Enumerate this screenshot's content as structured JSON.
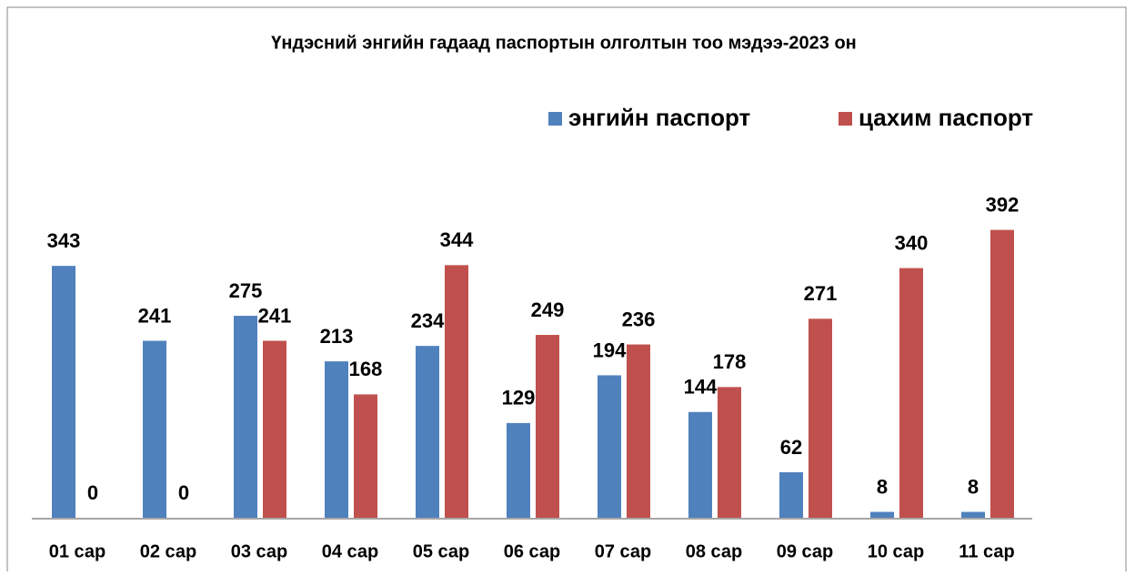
{
  "chart_data": {
    "type": "bar",
    "title": "Үндэсний энгийн гадаад паспортын олголтын тоо мэдээ-2023 он",
    "categories": [
      "01 сар",
      "02 сар",
      "03 сар",
      "04 сар",
      "05 сар",
      "06 сар",
      "07 сар",
      "08 сар",
      "09 сар",
      "10 сар",
      "11 сар"
    ],
    "series": [
      {
        "name": "энгийн паспорт",
        "color": "#4f81bd",
        "values": [
          343,
          241,
          275,
          213,
          234,
          129,
          194,
          144,
          62,
          8,
          8
        ]
      },
      {
        "name": "цахим паспорт",
        "color": "#c0504d",
        "values": [
          0,
          0,
          241,
          168,
          344,
          249,
          236,
          178,
          271,
          340,
          392
        ]
      }
    ],
    "legend": "top-right"
  }
}
